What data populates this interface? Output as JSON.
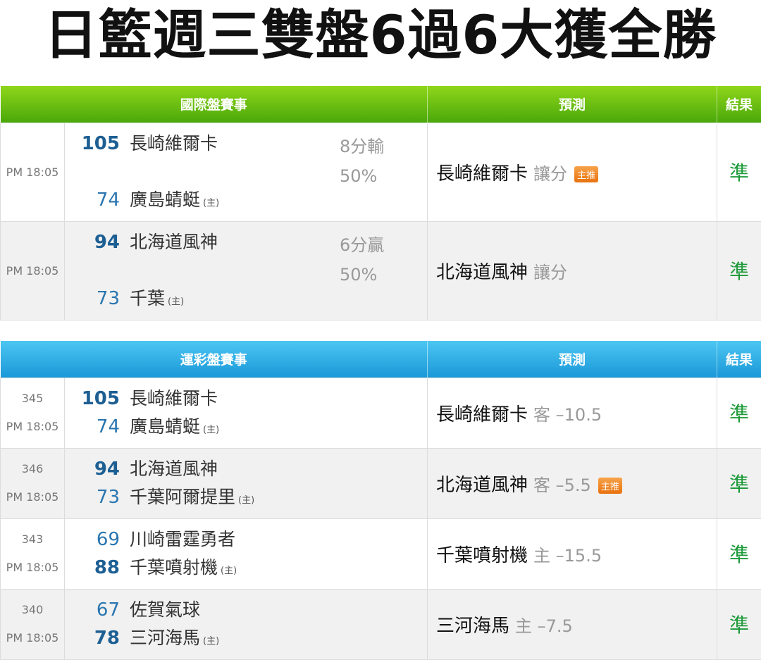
{
  "title": "日籃週三雙盤6過6大獲全勝",
  "colors": {
    "intl_header": "#5ab812",
    "sports_header": "#25a8e0",
    "result": "#1e9a3a",
    "badge": "#ec7a16"
  },
  "intl": {
    "headers": [
      "國際盤賽事",
      "預測",
      "結果"
    ],
    "rows": [
      {
        "time": "PM 18:05",
        "away_score": "105",
        "away": "長崎維爾卡",
        "home_score": "74",
        "home": "廣島蜻蜓",
        "home_mark": "(主)",
        "odds1": "8分輸",
        "odds2": "50%",
        "pick": "長崎維爾卡",
        "pick_sub": "讓分",
        "badge": "主推",
        "result": "準"
      },
      {
        "time": "PM 18:05",
        "away_score": "94",
        "away": "北海道風神",
        "home_score": "73",
        "home": "千葉",
        "home_mark": "(主)",
        "odds1": "6分贏",
        "odds2": "50%",
        "pick": "北海道風神",
        "pick_sub": "讓分",
        "badge": "",
        "result": "準"
      }
    ]
  },
  "sports": {
    "headers": [
      "運彩盤賽事",
      "預測",
      "結果"
    ],
    "rows": [
      {
        "id": "345",
        "time": "PM 18:05",
        "away_score": "105",
        "away": "長崎維爾卡",
        "home_score": "74",
        "home": "廣島蜻蜓",
        "home_mark": "(主)",
        "pick": "長崎維爾卡",
        "pick_sub": "客 –10.5",
        "badge": "",
        "result": "準",
        "winner": "away"
      },
      {
        "id": "346",
        "time": "PM 18:05",
        "away_score": "94",
        "away": "北海道風神",
        "home_score": "73",
        "home": "千葉阿爾提里",
        "home_mark": "(主)",
        "pick": "北海道風神",
        "pick_sub": "客 –5.5",
        "badge": "主推",
        "result": "準",
        "winner": "away"
      },
      {
        "id": "343",
        "time": "PM 18:05",
        "away_score": "69",
        "away": "川崎雷霆勇者",
        "home_score": "88",
        "home": "千葉噴射機",
        "home_mark": "(主)",
        "pick": "千葉噴射機",
        "pick_sub": "主 –15.5",
        "badge": "",
        "result": "準",
        "winner": "home"
      },
      {
        "id": "340",
        "time": "PM 18:05",
        "away_score": "67",
        "away": "佐賀氣球",
        "home_score": "78",
        "home": "三河海馬",
        "home_mark": "(主)",
        "pick": "三河海馬",
        "pick_sub": "主 –7.5",
        "badge": "",
        "result": "準",
        "winner": "home"
      }
    ]
  }
}
